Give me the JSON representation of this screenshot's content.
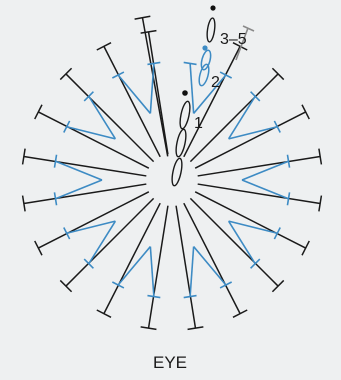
{
  "diagram": {
    "title": "EYE",
    "row_labels": [
      "1",
      "2",
      "3–5"
    ],
    "colors": {
      "background": "#eef0f1",
      "outer_stitch": "#1a1a1a",
      "inner_stitch": "#3d8bc4",
      "row3_accent": "#8a8a8a",
      "marker_dot": "#111111"
    },
    "stitch_symbol": "tall-post-with-crossbar",
    "rounds": [
      {
        "round": 1,
        "color_key": "outer_stitch",
        "stitch_count": 20
      },
      {
        "round": 2,
        "color_key": "inner_stitch",
        "stitch_count": 10
      }
    ]
  }
}
